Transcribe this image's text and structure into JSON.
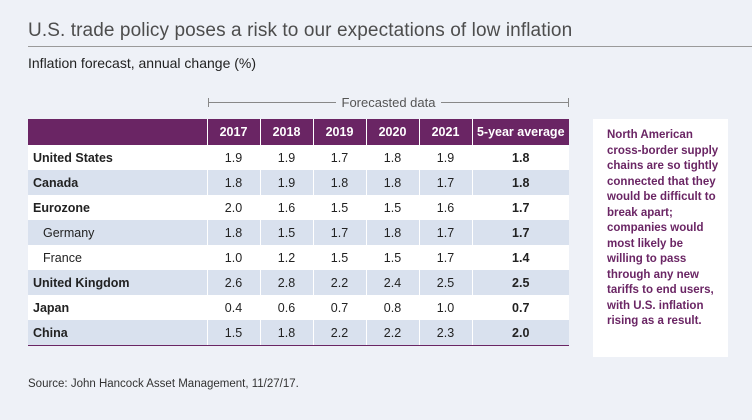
{
  "title": "U.S. trade policy poses a risk to our expectations of low inflation",
  "subtitle": "Inflation forecast, annual change (%)",
  "forecast_label": "Forecasted data",
  "table": {
    "columns": [
      "",
      "2017",
      "2018",
      "2019",
      "2020",
      "2021",
      "5-year average"
    ],
    "rows": [
      {
        "name": "United States",
        "indent": false,
        "values": [
          "1.9",
          "1.9",
          "1.7",
          "1.8",
          "1.9"
        ],
        "average": "1.8"
      },
      {
        "name": "Canada",
        "indent": false,
        "values": [
          "1.8",
          "1.9",
          "1.8",
          "1.8",
          "1.7"
        ],
        "average": "1.8"
      },
      {
        "name": "Eurozone",
        "indent": false,
        "values": [
          "2.0",
          "1.6",
          "1.5",
          "1.5",
          "1.6"
        ],
        "average": "1.7"
      },
      {
        "name": "Germany",
        "indent": true,
        "values": [
          "1.8",
          "1.5",
          "1.7",
          "1.8",
          "1.7"
        ],
        "average": "1.7"
      },
      {
        "name": "France",
        "indent": true,
        "values": [
          "1.0",
          "1.2",
          "1.5",
          "1.5",
          "1.7"
        ],
        "average": "1.4"
      },
      {
        "name": "United Kingdom",
        "indent": false,
        "values": [
          "2.6",
          "2.8",
          "2.2",
          "2.4",
          "2.5"
        ],
        "average": "2.5"
      },
      {
        "name": "Japan",
        "indent": false,
        "values": [
          "0.4",
          "0.6",
          "0.7",
          "0.8",
          "1.0"
        ],
        "average": "0.7"
      },
      {
        "name": "China",
        "indent": false,
        "values": [
          "1.5",
          "1.8",
          "2.2",
          "2.2",
          "2.3"
        ],
        "average": "2.0"
      }
    ]
  },
  "sidebar_text": "North American cross-border supply chains are so tightly connected that they would be difficult to break apart; companies would most likely be willing to pass through any new tariffs to end users, with U.S. inflation rising as a result.",
  "source": "Source: John Hancock Asset Management, 11/27/17.",
  "colors": {
    "header_bg": "#6a2564",
    "band": "#d9e1ee",
    "background": "#eef1f7"
  }
}
